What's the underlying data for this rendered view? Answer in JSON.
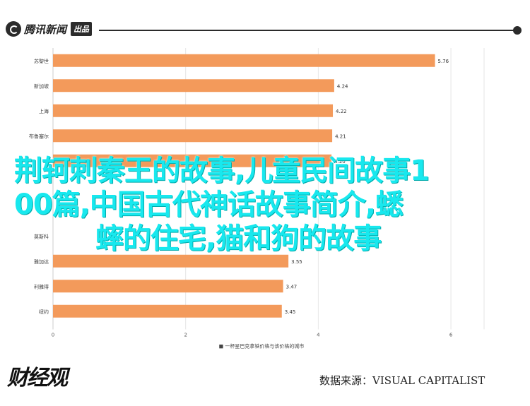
{
  "header": {
    "logo_text": "腾讯新闻",
    "logo_badge": "出品"
  },
  "overlay": {
    "line1": "荆轲刺秦王的故事,儿童民间故事1",
    "line2": "00篇,中国古代神话故事简介,蟋",
    "line3": "蟀的住宅,猫和狗的故事"
  },
  "chart_data": {
    "type": "bar",
    "orientation": "horizontal",
    "categories": [
      "苏黎世",
      "新加坡",
      "上海",
      "布鲁塞尔",
      "",
      "",
      "",
      "莫斯科",
      "雅加达",
      "利雅得",
      "纽约"
    ],
    "values": [
      5.76,
      4.24,
      4.22,
      4.21,
      4.2,
      null,
      null,
      null,
      3.55,
      3.47,
      3.45
    ],
    "value_labels": [
      "5.76",
      "4.24",
      "4.22",
      "4.21",
      "4.20",
      "",
      "",
      "",
      "3.55",
      "3.47",
      "3.45"
    ],
    "xlim": [
      0,
      6.5
    ],
    "xticks": [
      "0",
      "2",
      "4",
      "6"
    ],
    "xlabel": "一杯星巴克拿铁价格与该价格的城市",
    "grid": true,
    "bar_color": "#f39a5b"
  },
  "footer": {
    "brand": "财经观",
    "source": "数据来源：VISUAL CAPITALIST"
  },
  "colors": {
    "bar": "#f39a5b",
    "overlay_text": "#18e8ee"
  }
}
